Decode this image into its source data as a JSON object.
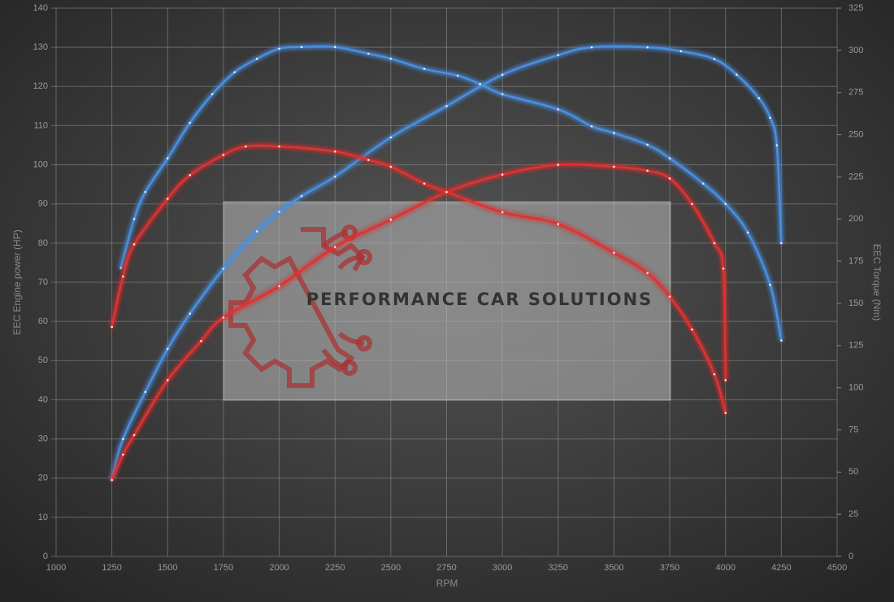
{
  "chart_data": {
    "type": "line",
    "xlabel": "RPM",
    "ylabel": "EEC Engine power (HP)",
    "y2label": "EEC Torque (Nm)",
    "watermark": "PERFORMANCE CAR SOLUTIONS",
    "xlim": [
      1000,
      4500
    ],
    "xticks": [
      1000,
      1250,
      1500,
      1750,
      2000,
      2250,
      2500,
      2750,
      3000,
      3250,
      3500,
      3750,
      4000,
      4250,
      4500
    ],
    "ylim": [
      0,
      140
    ],
    "yticks": [
      0,
      10,
      20,
      30,
      40,
      50,
      60,
      70,
      80,
      90,
      100,
      110,
      120,
      130,
      140
    ],
    "y2lim": [
      0,
      325
    ],
    "y2ticks": [
      0,
      25,
      50,
      75,
      100,
      125,
      150,
      175,
      200,
      225,
      250,
      275,
      300,
      325
    ],
    "grid": true,
    "series": [
      {
        "color": "#4a8fe0",
        "x": [
          1250,
          1300,
          1400,
          1500,
          1600,
          1750,
          1900,
          2000,
          2100,
          2250,
          2500,
          2750,
          3000,
          3250,
          3400,
          3650,
          3800,
          3950,
          4050,
          4150,
          4200,
          4230,
          4250
        ],
        "values": [
          20,
          30,
          42,
          53,
          62,
          73.5,
          83,
          88,
          92,
          97,
          107,
          115,
          123,
          128,
          130,
          130,
          129,
          127,
          123,
          117,
          112,
          105,
          80
        ]
      },
      {
        "color": "#4a8fe0",
        "axis": "y2",
        "x": [
          1290,
          1350,
          1400,
          1500,
          1600,
          1700,
          1800,
          1900,
          2000,
          2100,
          2250,
          2400,
          2500,
          2650,
          2800,
          2900,
          3000,
          3250,
          3400,
          3500,
          3650,
          3750,
          3900,
          4000,
          4100,
          4200,
          4250
        ],
        "values": [
          171,
          200,
          216,
          236,
          257,
          274,
          287,
          295,
          301,
          302,
          302,
          298,
          295,
          289,
          285,
          280,
          274,
          265,
          255,
          251,
          244,
          236,
          221,
          209,
          192,
          161,
          128
        ]
      },
      {
        "color": "#e03030",
        "x": [
          1250,
          1300,
          1350,
          1500,
          1650,
          1750,
          2000,
          2250,
          2500,
          2750,
          3000,
          3250,
          3500,
          3650,
          3750,
          3850,
          3950,
          3990,
          4000
        ],
        "values": [
          19.5,
          26,
          31,
          45,
          55,
          61,
          69,
          79,
          86,
          93,
          97.5,
          100,
          99.5,
          98.5,
          96.5,
          90,
          80,
          73.5,
          45
        ]
      },
      {
        "color": "#e03030",
        "axis": "y2",
        "x": [
          1250,
          1300,
          1350,
          1500,
          1600,
          1750,
          1850,
          2000,
          2250,
          2400,
          2500,
          2650,
          2750,
          3000,
          3250,
          3500,
          3650,
          3750,
          3850,
          3950,
          4000
        ],
        "values": [
          136,
          166,
          185,
          212,
          226,
          238,
          243,
          243,
          240,
          235,
          231,
          221,
          216,
          204,
          197,
          180,
          168,
          154,
          134.5,
          108,
          85
        ]
      }
    ]
  }
}
